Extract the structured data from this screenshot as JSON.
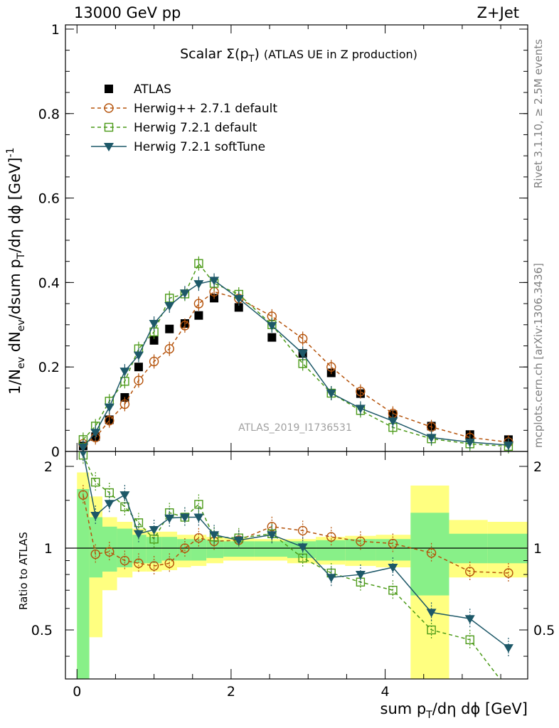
{
  "header": {
    "energy_label": "13000 GeV pp",
    "process_label": "Z+Jet"
  },
  "side_labels": {
    "rivet": "Rivet 3.1.10, ≥ 2.5M events",
    "mcplots": "mcplots.cern.ch [arXiv:1306.3436]"
  },
  "watermark": "ATLAS_2019_I1736531",
  "colors": {
    "atlas": "#000000",
    "herwigpp": "#b5530b",
    "herwig_default": "#4b9a18",
    "herwig_soft": "#1d5868",
    "band_yellow": "#ffff80",
    "band_green": "#88f088"
  },
  "chart_data": [
    {
      "type": "scatter",
      "title": "Scalar Σ(p_T) (ATLAS UE in Z production)",
      "xlabel": "sum p_T/dη dϕ [GeV]",
      "ylabel": "1/N_ev dN_ev/dsum p_T/dη dϕ [GeV]^-1",
      "xlim": [
        -0.15,
        5.85
      ],
      "ylim": [
        0,
        1.01
      ],
      "yticks": [
        "0",
        "0.2",
        "0.4",
        "0.6",
        "0.8",
        "1"
      ],
      "x": [
        0.08,
        0.24,
        0.42,
        0.62,
        0.8,
        1.0,
        1.2,
        1.4,
        1.58,
        1.78,
        2.1,
        2.53,
        2.93,
        3.3,
        3.68,
        4.1,
        4.6,
        5.1,
        5.6
      ],
      "legend_position": "top-left",
      "series": [
        {
          "name": "ATLAS",
          "marker": "filled-square",
          "values": [
            0.013,
            0.035,
            0.075,
            0.128,
            0.2,
            0.263,
            0.29,
            0.303,
            0.322,
            0.363,
            0.341,
            0.27,
            0.232,
            0.186,
            0.137,
            0.087,
            0.06,
            0.04,
            0.028
          ]
        },
        {
          "name": "Herwig++ 2.7.1 default",
          "marker": "open-circle",
          "values": [
            0.018,
            0.033,
            0.073,
            0.112,
            0.168,
            0.213,
            0.243,
            0.298,
            0.35,
            0.378,
            0.362,
            0.32,
            0.267,
            0.2,
            0.142,
            0.09,
            0.058,
            0.033,
            0.022
          ]
        },
        {
          "name": "Herwig 7.2.1 default",
          "marker": "open-square",
          "values": [
            0.028,
            0.06,
            0.119,
            0.166,
            0.243,
            0.283,
            0.363,
            0.373,
            0.445,
            0.398,
            0.372,
            0.3,
            0.208,
            0.138,
            0.097,
            0.057,
            0.03,
            0.018,
            0.012
          ]
        },
        {
          "name": "Herwig 7.2.1 softTune",
          "marker": "filled-triangle-down",
          "values": [
            0.01,
            0.045,
            0.105,
            0.19,
            0.228,
            0.303,
            0.345,
            0.375,
            0.397,
            0.405,
            0.362,
            0.298,
            0.232,
            0.138,
            0.102,
            0.072,
            0.033,
            0.022,
            0.015
          ]
        }
      ]
    },
    {
      "type": "line",
      "ylabel": "Ratio to ATLAS",
      "ylim": [
        0.33,
        2.27
      ],
      "yticks": [
        "0.5",
        "1",
        "2"
      ],
      "xticks": [
        "0",
        "2",
        "4"
      ],
      "x": [
        0.08,
        0.24,
        0.42,
        0.62,
        0.8,
        1.0,
        1.2,
        1.4,
        1.58,
        1.78,
        2.1,
        2.53,
        2.93,
        3.3,
        3.68,
        4.1,
        4.6,
        5.1,
        5.6
      ],
      "series": [
        {
          "name": "Herwig++ 2.7.1 default",
          "values": [
            1.57,
            0.95,
            0.97,
            0.9,
            0.88,
            0.86,
            0.88,
            1.0,
            1.09,
            1.06,
            1.07,
            1.2,
            1.16,
            1.1,
            1.06,
            1.04,
            0.96,
            0.82,
            0.81
          ]
        },
        {
          "name": "Herwig 7.2.1 default",
          "values": [
            2.2,
            1.75,
            1.6,
            1.42,
            1.24,
            1.08,
            1.35,
            1.3,
            1.45,
            1.1,
            1.09,
            1.13,
            0.92,
            0.81,
            0.75,
            0.7,
            0.5,
            0.46,
            0.3
          ]
        },
        {
          "name": "Herwig 7.2.1 softTune",
          "values": [
            2.25,
            1.32,
            1.46,
            1.57,
            1.13,
            1.17,
            1.29,
            1.3,
            1.3,
            1.12,
            1.07,
            1.12,
            1.01,
            0.78,
            0.8,
            0.85,
            0.58,
            0.55,
            0.43
          ]
        }
      ]
    }
  ]
}
